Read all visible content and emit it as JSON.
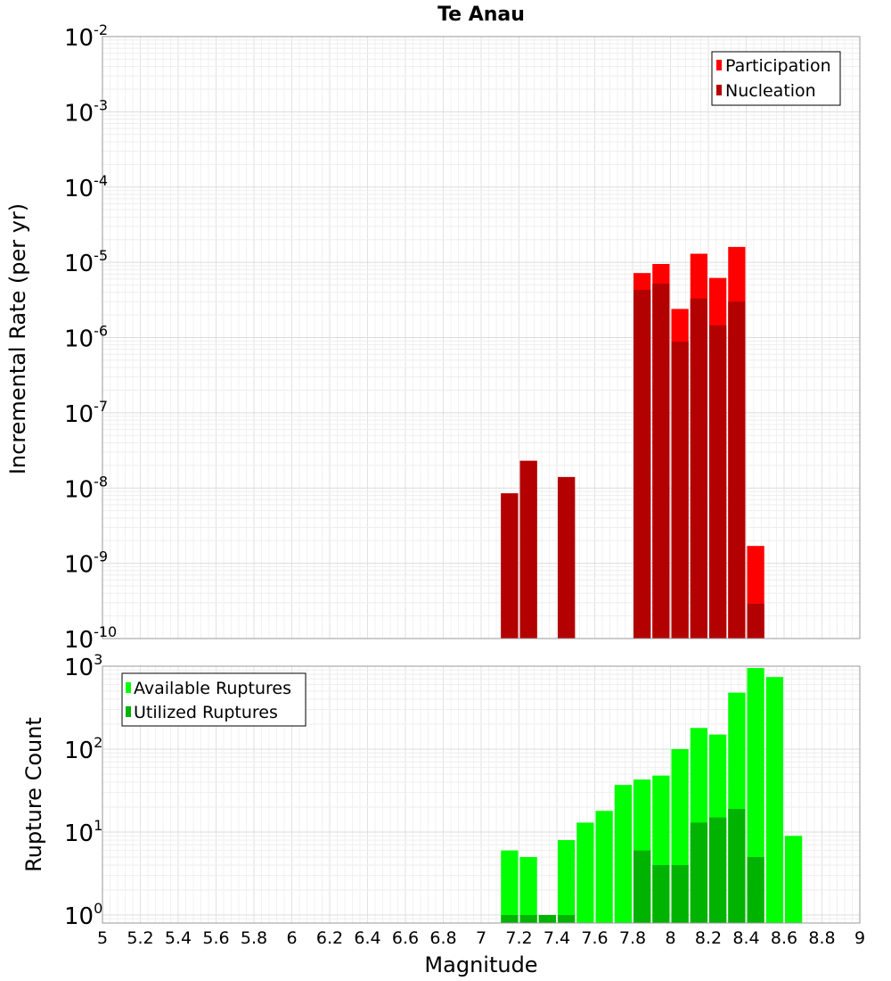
{
  "chart_data": [
    {
      "type": "bar",
      "title": "Te Anau",
      "ylabel": "Incremental Rate (per yr)",
      "xlabel": "",
      "yscale": "log",
      "ylim": [
        1e-10,
        0.01
      ],
      "xlim": [
        5,
        9
      ],
      "grid": true,
      "legend_position": "top-right",
      "bin_width": 0.1,
      "x": [
        7.15,
        7.25,
        7.45,
        7.85,
        7.95,
        8.05,
        8.15,
        8.25,
        8.35,
        8.45
      ],
      "series": [
        {
          "name": "Participation",
          "color": "#ff0000",
          "values": [
            8.5e-09,
            2.3e-08,
            1.4e-08,
            7.2e-06,
            9.5e-06,
            2.4e-06,
            1.3e-05,
            6.2e-06,
            1.6e-05,
            1.7e-09
          ]
        },
        {
          "name": "Nucleation",
          "color": "#b30000",
          "values": [
            8.5e-09,
            2.3e-08,
            1.4e-08,
            4.3e-06,
            5.2e-06,
            8.8e-07,
            3.3e-06,
            1.45e-06,
            3e-06,
            2.9e-10
          ]
        }
      ],
      "ytick_bases": [
        "10",
        "10",
        "10",
        "10",
        "10",
        "10",
        "10",
        "10",
        "10"
      ],
      "ytick_exponents": [
        "-2",
        "-3",
        "-4",
        "-5",
        "-6",
        "-7",
        "-8",
        "-9",
        "-10"
      ]
    },
    {
      "type": "bar",
      "ylabel": "Rupture Count",
      "xlabel": "Magnitude",
      "yscale": "log",
      "ylim": [
        0.8,
        1000
      ],
      "xlim": [
        5,
        9
      ],
      "grid": true,
      "legend_position": "top-left",
      "bin_width": 0.1,
      "x": [
        7.15,
        7.25,
        7.35,
        7.45,
        7.55,
        7.65,
        7.75,
        7.85,
        7.95,
        8.05,
        8.15,
        8.25,
        8.35,
        8.45,
        8.55,
        8.65
      ],
      "series": [
        {
          "name": "Available Ruptures",
          "color": "#00ff00",
          "values": [
            6,
            5,
            1,
            8,
            13,
            18,
            37,
            43,
            48,
            100,
            180,
            150,
            480,
            950,
            740,
            9
          ]
        },
        {
          "name": "Utilized Ruptures",
          "color": "#00b300",
          "values": [
            1,
            1,
            1,
            1,
            0,
            0,
            0,
            6,
            4,
            4,
            13,
            15,
            19,
            5,
            0,
            0
          ]
        }
      ],
      "ytick_bases": [
        "10",
        "10",
        "10",
        "10"
      ],
      "ytick_exponents": [
        "3",
        "2",
        "1",
        "0"
      ],
      "xticks": [
        "5",
        "5.2",
        "5.4",
        "5.6",
        "5.8",
        "6",
        "6.2",
        "6.4",
        "6.6",
        "6.8",
        "7",
        "7.2",
        "7.4",
        "7.6",
        "7.8",
        "8",
        "8.2",
        "8.4",
        "8.6",
        "8.8",
        "9"
      ]
    }
  ]
}
